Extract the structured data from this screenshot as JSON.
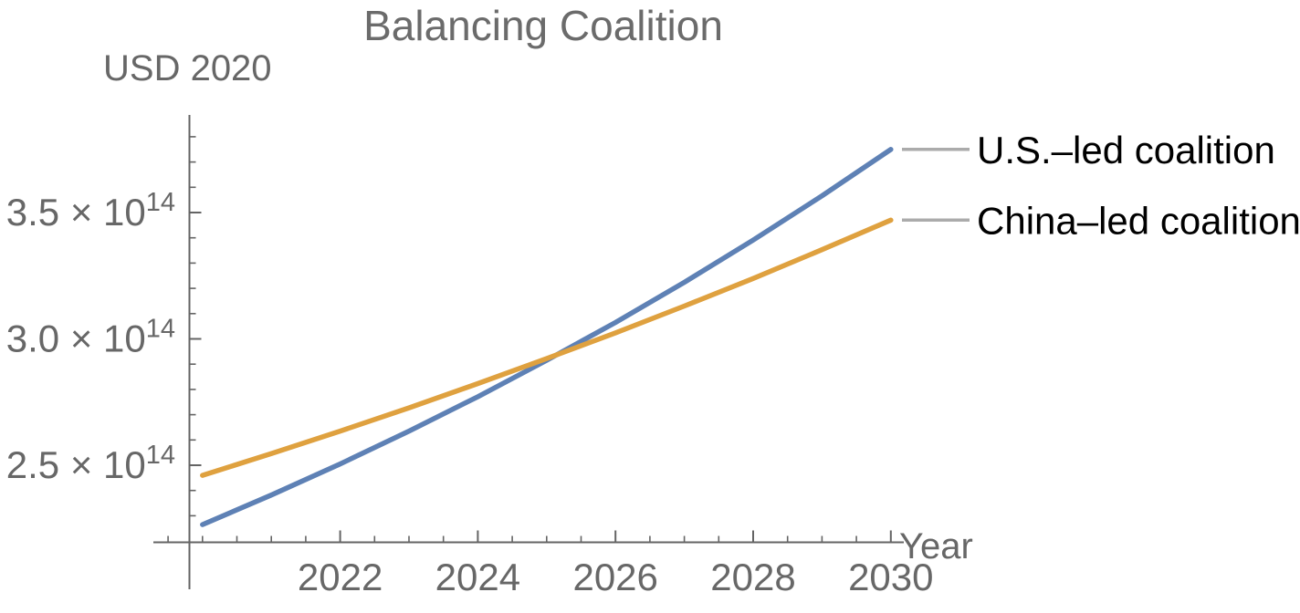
{
  "chart_data": {
    "type": "line",
    "title": "Balancing Coalition",
    "xlabel": "Year",
    "ylabel": "USD 2020",
    "value_unit": "×10^14 USD 2020",
    "x": [
      2020,
      2021,
      2022,
      2023,
      2024,
      2025,
      2026,
      2027,
      2028,
      2029,
      2030
    ],
    "series": [
      {
        "name": "U.S.–led coalition",
        "color": "#5E81B5",
        "values_e14": [
          2.265,
          2.382,
          2.505,
          2.635,
          2.771,
          2.915,
          3.065,
          3.224,
          3.391,
          3.566,
          3.75
        ]
      },
      {
        "name": "China–led coalition",
        "color": "#DFA13F",
        "values_e14": [
          2.46,
          2.546,
          2.635,
          2.727,
          2.823,
          2.922,
          3.024,
          3.13,
          3.239,
          3.353,
          3.47
        ]
      }
    ],
    "x_major_ticks": [
      {
        "value": 2022,
        "label": "2022"
      },
      {
        "value": 2024,
        "label": "2024"
      },
      {
        "value": 2026,
        "label": "2026"
      },
      {
        "value": 2028,
        "label": "2028"
      },
      {
        "value": 2030,
        "label": "2030"
      }
    ],
    "x_minor_tick_step": 0.5,
    "x_minor_tick_range": [
      2019.5,
      2029.5
    ],
    "y_major_ticks": [
      {
        "value_e14": 2.5,
        "label": "2.5 × 10",
        "sup": "14"
      },
      {
        "value_e14": 3.0,
        "label": "3.0 × 10",
        "sup": "14"
      },
      {
        "value_e14": 3.5,
        "label": "3.5 × 10",
        "sup": "14"
      }
    ],
    "y_minor_tick_step_e14": 0.1,
    "y_minor_tick_range_e14": [
      2.3,
      3.8
    ],
    "grid": false,
    "legend_position": "right-callout"
  },
  "legend": {
    "entries": [
      {
        "label": "U.S.–led coalition",
        "series_color": "#5E81B5",
        "callout_color": "#ABABAB"
      },
      {
        "label": "China–led coalition",
        "series_color": "#DFA13F",
        "callout_color": "#ABABAB"
      }
    ]
  },
  "colors": {
    "axis": "#646464",
    "tick_label": "#676767",
    "title": "#6b6b6b",
    "legend_text": "#000000",
    "callout": "#ABABAB",
    "background": "#ffffff"
  }
}
